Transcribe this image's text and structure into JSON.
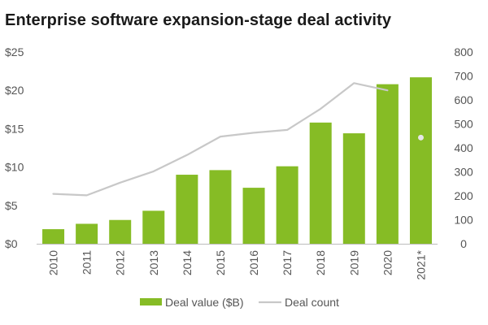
{
  "chart_data": {
    "type": "bar+line",
    "title": "Enterprise software expansion-stage deal activity",
    "categories": [
      "2010",
      "2011",
      "2012",
      "2013",
      "2014",
      "2015",
      "2016",
      "2017",
      "2018",
      "2019",
      "2020",
      "2021*"
    ],
    "left_axis": {
      "ylim": [
        0,
        25
      ],
      "ticks": [
        0,
        5,
        10,
        15,
        20,
        25
      ],
      "tick_labels": [
        "$0",
        "$5",
        "$10",
        "$15",
        "$20",
        "$25"
      ]
    },
    "right_axis": {
      "ylim": [
        0,
        800
      ],
      "ticks": [
        0,
        100,
        200,
        300,
        400,
        500,
        600,
        700,
        800
      ],
      "tick_labels": [
        "0",
        "100",
        "200",
        "300",
        "400",
        "500",
        "600",
        "700",
        "800"
      ]
    },
    "series": [
      {
        "name": "Deal value ($B)",
        "type": "bar",
        "axis": "left",
        "color": "#86bc25",
        "values": [
          1.9,
          2.6,
          3.1,
          4.3,
          9.0,
          9.6,
          7.3,
          10.1,
          15.8,
          14.4,
          20.8,
          21.7
        ]
      },
      {
        "name": "Deal count",
        "type": "line",
        "axis": "right",
        "color": "#c8c8c8",
        "values": [
          208,
          202,
          255,
          302,
          370,
          447,
          463,
          475,
          563,
          670,
          640,
          null
        ],
        "extra_point": {
          "category": "2021*",
          "value": 443
        }
      }
    ],
    "legend": {
      "position": "bottom",
      "items": [
        {
          "label": "Deal value ($B)",
          "marker": "bar",
          "color": "#86bc25"
        },
        {
          "label": "Deal count",
          "marker": "line",
          "color": "#c8c8c8"
        }
      ]
    },
    "grid": false
  }
}
